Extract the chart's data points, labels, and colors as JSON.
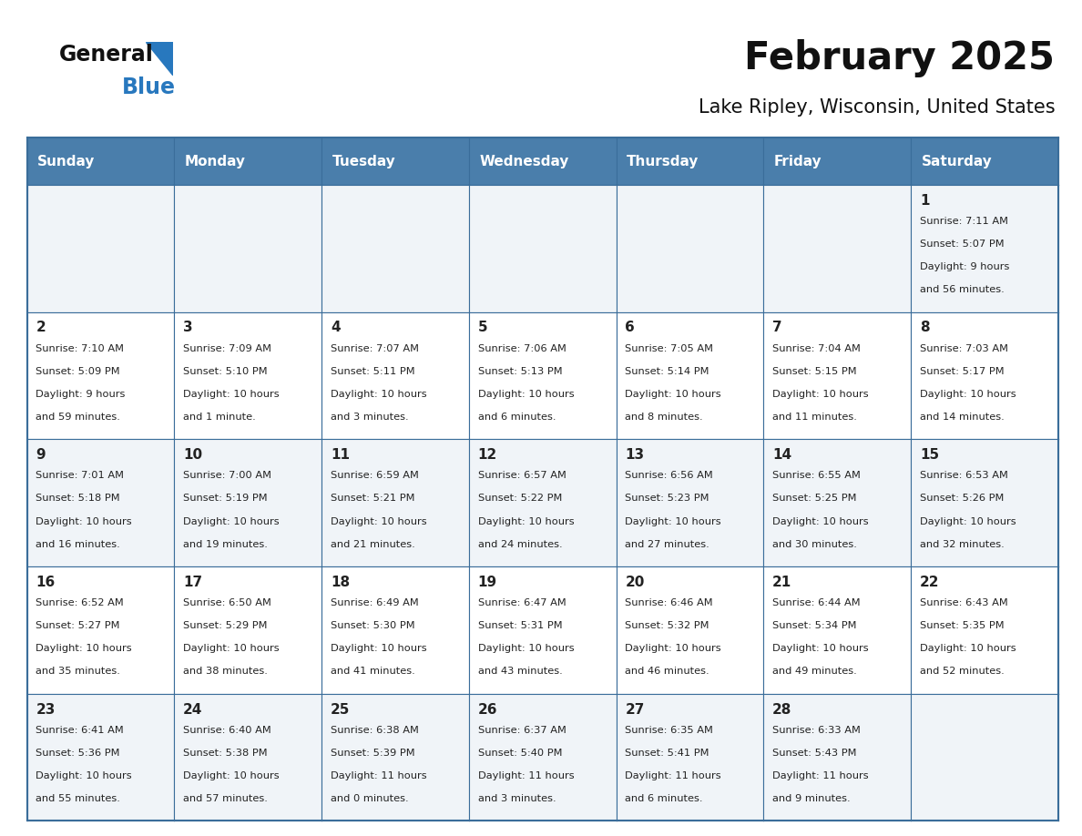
{
  "title": "February 2025",
  "subtitle": "Lake Ripley, Wisconsin, United States",
  "days_of_week": [
    "Sunday",
    "Monday",
    "Tuesday",
    "Wednesday",
    "Thursday",
    "Friday",
    "Saturday"
  ],
  "header_bg": "#4a7eab",
  "header_text": "#ffffff",
  "row_bg_light": "#f0f4f8",
  "row_bg_white": "#ffffff",
  "border_color": "#3a6d9a",
  "cell_text_color": "#222222",
  "title_color": "#111111",
  "subtitle_color": "#111111",
  "logo_general_color": "#111111",
  "logo_blue_color": "#2878be",
  "calendar_data": [
    [
      null,
      null,
      null,
      null,
      null,
      null,
      {
        "day": "1",
        "sunrise": "7:11 AM",
        "sunset": "5:07 PM",
        "daylight": "9 hours\nand 56 minutes."
      }
    ],
    [
      {
        "day": "2",
        "sunrise": "7:10 AM",
        "sunset": "5:09 PM",
        "daylight": "9 hours\nand 59 minutes."
      },
      {
        "day": "3",
        "sunrise": "7:09 AM",
        "sunset": "5:10 PM",
        "daylight": "10 hours\nand 1 minute."
      },
      {
        "day": "4",
        "sunrise": "7:07 AM",
        "sunset": "5:11 PM",
        "daylight": "10 hours\nand 3 minutes."
      },
      {
        "day": "5",
        "sunrise": "7:06 AM",
        "sunset": "5:13 PM",
        "daylight": "10 hours\nand 6 minutes."
      },
      {
        "day": "6",
        "sunrise": "7:05 AM",
        "sunset": "5:14 PM",
        "daylight": "10 hours\nand 8 minutes."
      },
      {
        "day": "7",
        "sunrise": "7:04 AM",
        "sunset": "5:15 PM",
        "daylight": "10 hours\nand 11 minutes."
      },
      {
        "day": "8",
        "sunrise": "7:03 AM",
        "sunset": "5:17 PM",
        "daylight": "10 hours\nand 14 minutes."
      }
    ],
    [
      {
        "day": "9",
        "sunrise": "7:01 AM",
        "sunset": "5:18 PM",
        "daylight": "10 hours\nand 16 minutes."
      },
      {
        "day": "10",
        "sunrise": "7:00 AM",
        "sunset": "5:19 PM",
        "daylight": "10 hours\nand 19 minutes."
      },
      {
        "day": "11",
        "sunrise": "6:59 AM",
        "sunset": "5:21 PM",
        "daylight": "10 hours\nand 21 minutes."
      },
      {
        "day": "12",
        "sunrise": "6:57 AM",
        "sunset": "5:22 PM",
        "daylight": "10 hours\nand 24 minutes."
      },
      {
        "day": "13",
        "sunrise": "6:56 AM",
        "sunset": "5:23 PM",
        "daylight": "10 hours\nand 27 minutes."
      },
      {
        "day": "14",
        "sunrise": "6:55 AM",
        "sunset": "5:25 PM",
        "daylight": "10 hours\nand 30 minutes."
      },
      {
        "day": "15",
        "sunrise": "6:53 AM",
        "sunset": "5:26 PM",
        "daylight": "10 hours\nand 32 minutes."
      }
    ],
    [
      {
        "day": "16",
        "sunrise": "6:52 AM",
        "sunset": "5:27 PM",
        "daylight": "10 hours\nand 35 minutes."
      },
      {
        "day": "17",
        "sunrise": "6:50 AM",
        "sunset": "5:29 PM",
        "daylight": "10 hours\nand 38 minutes."
      },
      {
        "day": "18",
        "sunrise": "6:49 AM",
        "sunset": "5:30 PM",
        "daylight": "10 hours\nand 41 minutes."
      },
      {
        "day": "19",
        "sunrise": "6:47 AM",
        "sunset": "5:31 PM",
        "daylight": "10 hours\nand 43 minutes."
      },
      {
        "day": "20",
        "sunrise": "6:46 AM",
        "sunset": "5:32 PM",
        "daylight": "10 hours\nand 46 minutes."
      },
      {
        "day": "21",
        "sunrise": "6:44 AM",
        "sunset": "5:34 PM",
        "daylight": "10 hours\nand 49 minutes."
      },
      {
        "day": "22",
        "sunrise": "6:43 AM",
        "sunset": "5:35 PM",
        "daylight": "10 hours\nand 52 minutes."
      }
    ],
    [
      {
        "day": "23",
        "sunrise": "6:41 AM",
        "sunset": "5:36 PM",
        "daylight": "10 hours\nand 55 minutes."
      },
      {
        "day": "24",
        "sunrise": "6:40 AM",
        "sunset": "5:38 PM",
        "daylight": "10 hours\nand 57 minutes."
      },
      {
        "day": "25",
        "sunrise": "6:38 AM",
        "sunset": "5:39 PM",
        "daylight": "11 hours\nand 0 minutes."
      },
      {
        "day": "26",
        "sunrise": "6:37 AM",
        "sunset": "5:40 PM",
        "daylight": "11 hours\nand 3 minutes."
      },
      {
        "day": "27",
        "sunrise": "6:35 AM",
        "sunset": "5:41 PM",
        "daylight": "11 hours\nand 6 minutes."
      },
      {
        "day": "28",
        "sunrise": "6:33 AM",
        "sunset": "5:43 PM",
        "daylight": "11 hours\nand 9 minutes."
      },
      null
    ]
  ]
}
